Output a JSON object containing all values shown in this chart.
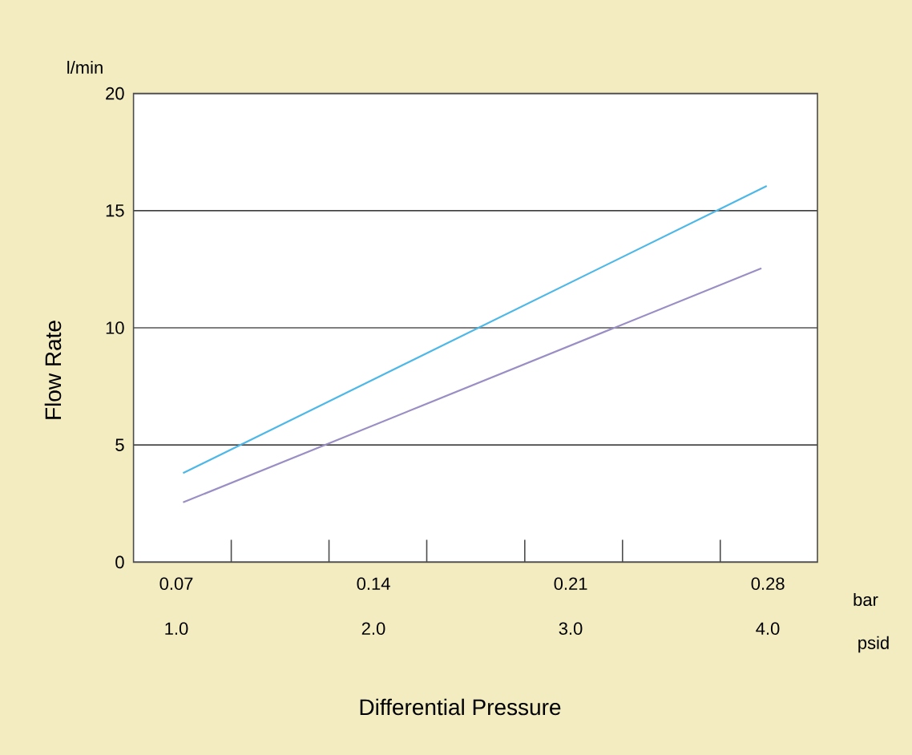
{
  "chart_data": {
    "type": "line",
    "xlabel": "Differential Pressure",
    "ylabel": "Flow Rate",
    "annotations": [
      "l/min",
      "bar",
      "psid"
    ],
    "xlim": [
      0.0548,
      0.2976
    ],
    "xticks": [
      {
        "value": 0.07,
        "label": "0.07"
      },
      {
        "value": 0.0895,
        "label": null
      },
      {
        "value": 0.1242,
        "label": null
      },
      {
        "value": 0.14,
        "label": "0.14"
      },
      {
        "value": 0.1589,
        "label": null
      },
      {
        "value": 0.1937,
        "label": null
      },
      {
        "value": 0.21,
        "label": "0.21"
      },
      {
        "value": 0.2284,
        "label": null
      },
      {
        "value": 0.2631,
        "label": null
      },
      {
        "value": 0.28,
        "label": "0.28"
      }
    ],
    "x2lim": [
      0.783,
      4.252
    ],
    "x2ticks": [
      {
        "value": 1,
        "label": "1.0"
      },
      {
        "value": 2,
        "label": "2.0"
      },
      {
        "value": 3,
        "label": "3.0"
      },
      {
        "value": 4,
        "label": "4.0"
      }
    ],
    "ylim": [
      0,
      20
    ],
    "yticks": [
      0,
      5,
      10,
      15,
      20
    ],
    "grid": "y",
    "series": [
      {
        "color": "#4db8e8",
        "x": [
          0.0724,
          0.2796
        ],
        "values": [
          3.8,
          16.05
        ]
      },
      {
        "color": "#9b8ec4",
        "x": [
          0.0724,
          0.2777
        ],
        "values": [
          2.55,
          12.54
        ]
      }
    ]
  }
}
